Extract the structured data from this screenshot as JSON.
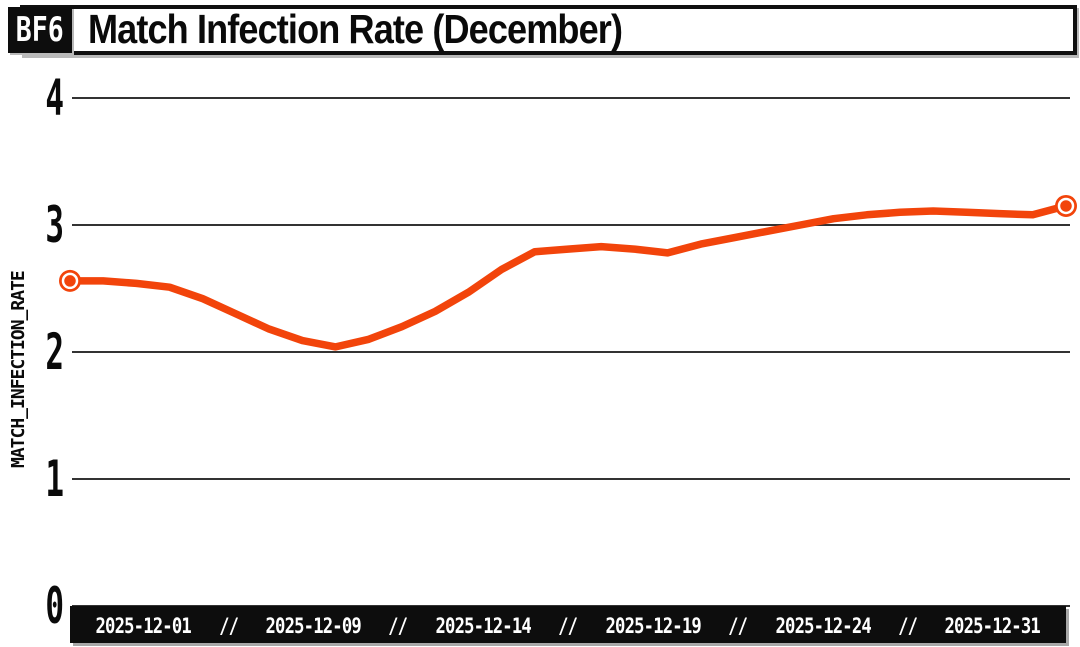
{
  "header": {
    "badge": "BF6",
    "title": "Match Infection Rate (December)"
  },
  "y_axis": {
    "title": "MATCH_INFECTION_RATE",
    "tick_labels": [
      "4",
      "3",
      "2",
      "1",
      "0"
    ]
  },
  "x_axis": {
    "separator": "//",
    "labels": [
      "2025-12-01",
      "2025-12-09",
      "2025-12-14",
      "2025-12-19",
      "2025-12-24",
      "2025-12-31"
    ]
  },
  "colors": {
    "line": "#f2440b",
    "grid": "#333333",
    "bar_background": "#0d0d0d",
    "bar_text": "#ffffff",
    "text": "#0a0a0a",
    "background": "#ffffff"
  },
  "chart_data": {
    "type": "line",
    "title": "Match Infection Rate (December)",
    "xlabel": "",
    "ylabel": "MATCH_INFECTION_RATE",
    "ylim": [
      0,
      4
    ],
    "y_ticks": [
      0,
      1,
      2,
      3,
      4
    ],
    "x_tick_labels": [
      "2025-12-01",
      "2025-12-09",
      "2025-12-14",
      "2025-12-19",
      "2025-12-24",
      "2025-12-31"
    ],
    "grid": "horizontal",
    "legend_position": "none",
    "series": [
      {
        "name": "match_infection_rate",
        "color": "#f2440b",
        "endpoint_markers": true,
        "x": [
          "2025-12-01",
          "2025-12-02",
          "2025-12-03",
          "2025-12-04",
          "2025-12-05",
          "2025-12-06",
          "2025-12-07",
          "2025-12-08",
          "2025-12-09",
          "2025-12-10",
          "2025-12-11",
          "2025-12-12",
          "2025-12-13",
          "2025-12-14",
          "2025-12-15",
          "2025-12-16",
          "2025-12-17",
          "2025-12-18",
          "2025-12-19",
          "2025-12-20",
          "2025-12-21",
          "2025-12-22",
          "2025-12-23",
          "2025-12-24",
          "2025-12-25",
          "2025-12-26",
          "2025-12-27",
          "2025-12-28",
          "2025-12-29",
          "2025-12-30",
          "2025-12-31"
        ],
        "values": [
          2.56,
          2.56,
          2.54,
          2.51,
          2.42,
          2.3,
          2.18,
          2.09,
          2.04,
          2.1,
          2.2,
          2.32,
          2.47,
          2.65,
          2.79,
          2.81,
          2.83,
          2.81,
          2.78,
          2.85,
          2.9,
          2.95,
          3.0,
          3.05,
          3.08,
          3.1,
          3.11,
          3.1,
          3.09,
          3.08,
          3.15
        ]
      }
    ]
  }
}
